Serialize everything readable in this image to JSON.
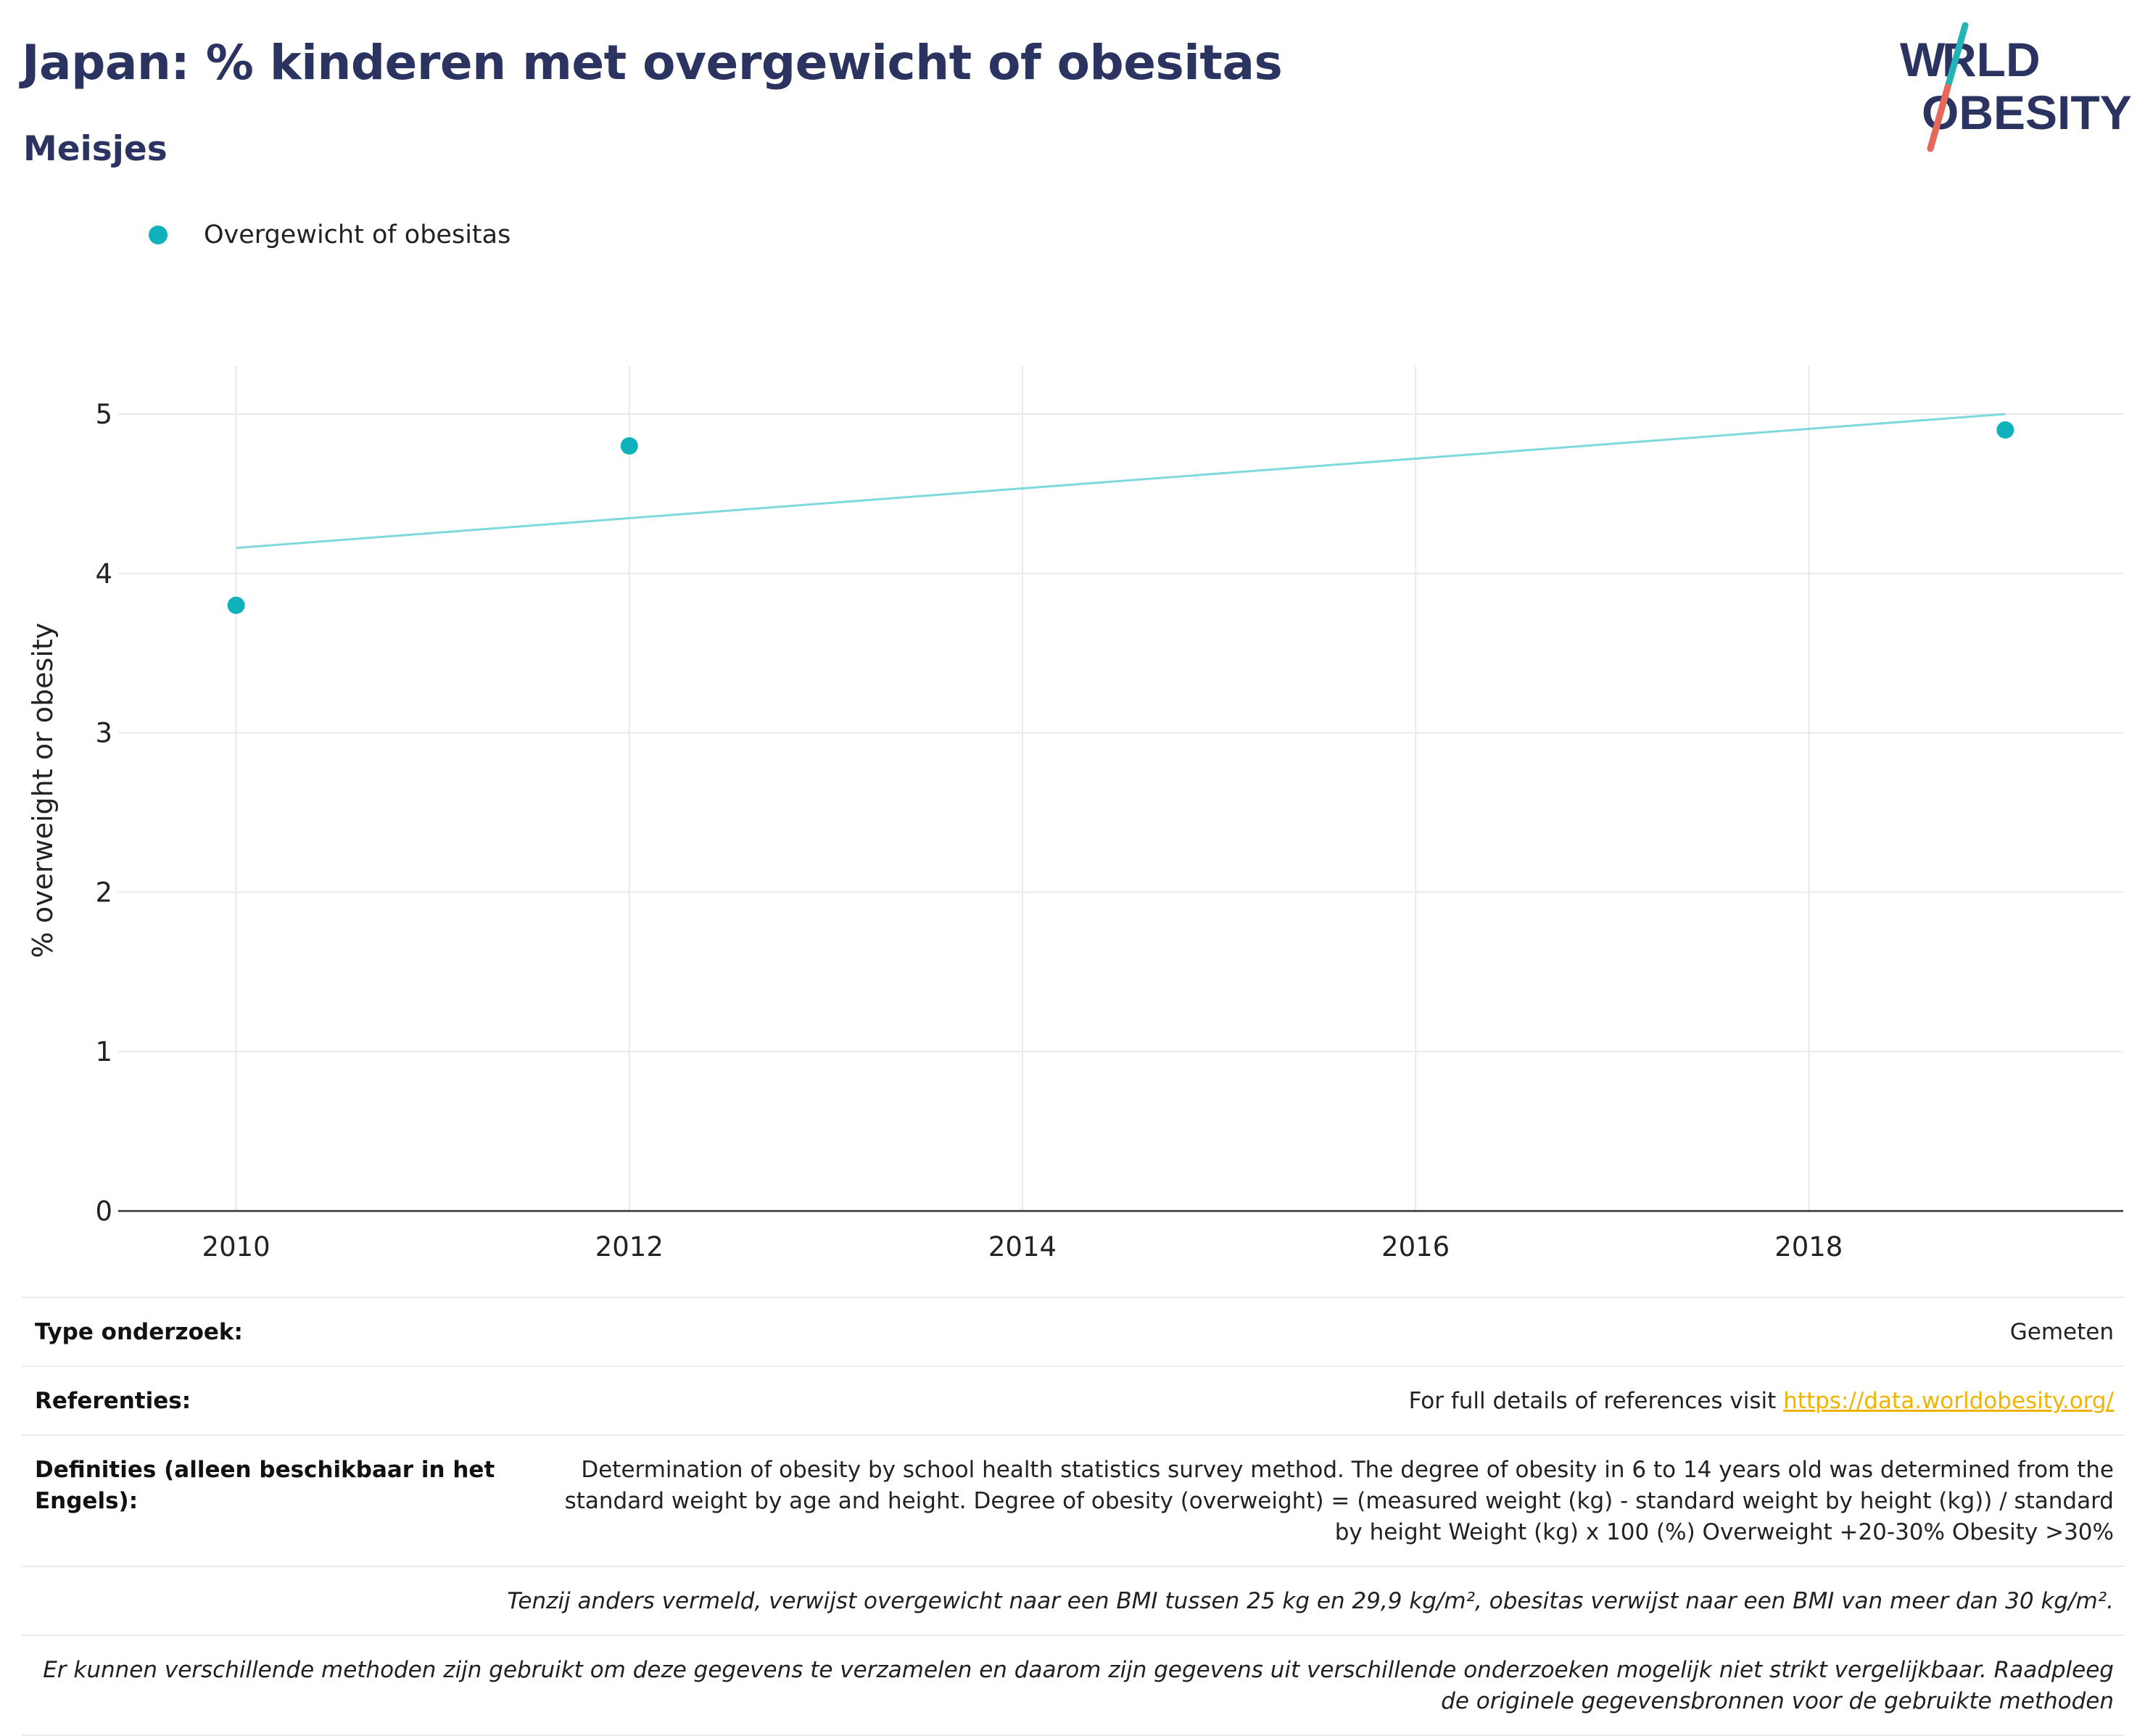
{
  "header": {
    "title": "Japan: % kinderen met overgewicht of obesitas",
    "subtitle": "Meisjes"
  },
  "logo": {
    "line1": "WORLD",
    "line2": "OBESITY",
    "color_text": "#2b3461",
    "color_teal": "#24b3b8",
    "color_coral": "#e9675a"
  },
  "legend": {
    "label": "Overgewicht of obesitas",
    "color": "#0fb2bb"
  },
  "chart_data": {
    "type": "scatter",
    "ylabel": "% overweight or obesity",
    "xlabel": "",
    "xlim": [
      2009.4,
      2019.6
    ],
    "ylim": [
      0,
      5.3
    ],
    "x_ticks": [
      2010,
      2012,
      2014,
      2016,
      2018
    ],
    "y_ticks": [
      0,
      1,
      2,
      3,
      4,
      5
    ],
    "grid": true,
    "legend_position": "top-left",
    "series": [
      {
        "name": "Overgewicht of obesitas",
        "color": "#0fb2bb",
        "x": [
          2010,
          2012,
          2019
        ],
        "y": [
          3.8,
          4.8,
          4.9
        ]
      }
    ],
    "trendline": {
      "color": "#7fd8dc",
      "x": [
        2010,
        2019
      ],
      "y": [
        4.16,
        5.0
      ]
    }
  },
  "info": {
    "survey_type_label": "Type onderzoek:",
    "survey_type_value": "Gemeten",
    "references_label": "Referenties:",
    "references_text": "For full details of references visit ",
    "references_link": "https://data.worldobesity.org/",
    "definitions_label": "Definities (alleen beschikbaar in het Engels):",
    "definitions_value": "Determination of obesity by school health statistics survey method. The degree of obesity in 6 to 14 years old was determined from the standard weight by age and height. Degree of obesity (overweight) = (measured weight (kg) - standard weight by height (kg)) / standard by height Weight (kg) x 100 (%) Overweight +20-30% Obesity >30%",
    "bmi_note": "Tenzij anders vermeld, verwijst overgewicht naar een BMI tussen 25 kg en 29,9 kg/m², obesitas verwijst naar een BMI van meer dan 30 kg/m².",
    "methods_note": "Er kunnen verschillende methoden zijn gebruikt om deze gegevens te verzamelen en daarom zijn gegevens uit verschillende onderzoeken mogelijk niet strikt vergelijkbaar. Raadpleeg de originele gegevensbronnen voor de gebruikte methoden"
  }
}
